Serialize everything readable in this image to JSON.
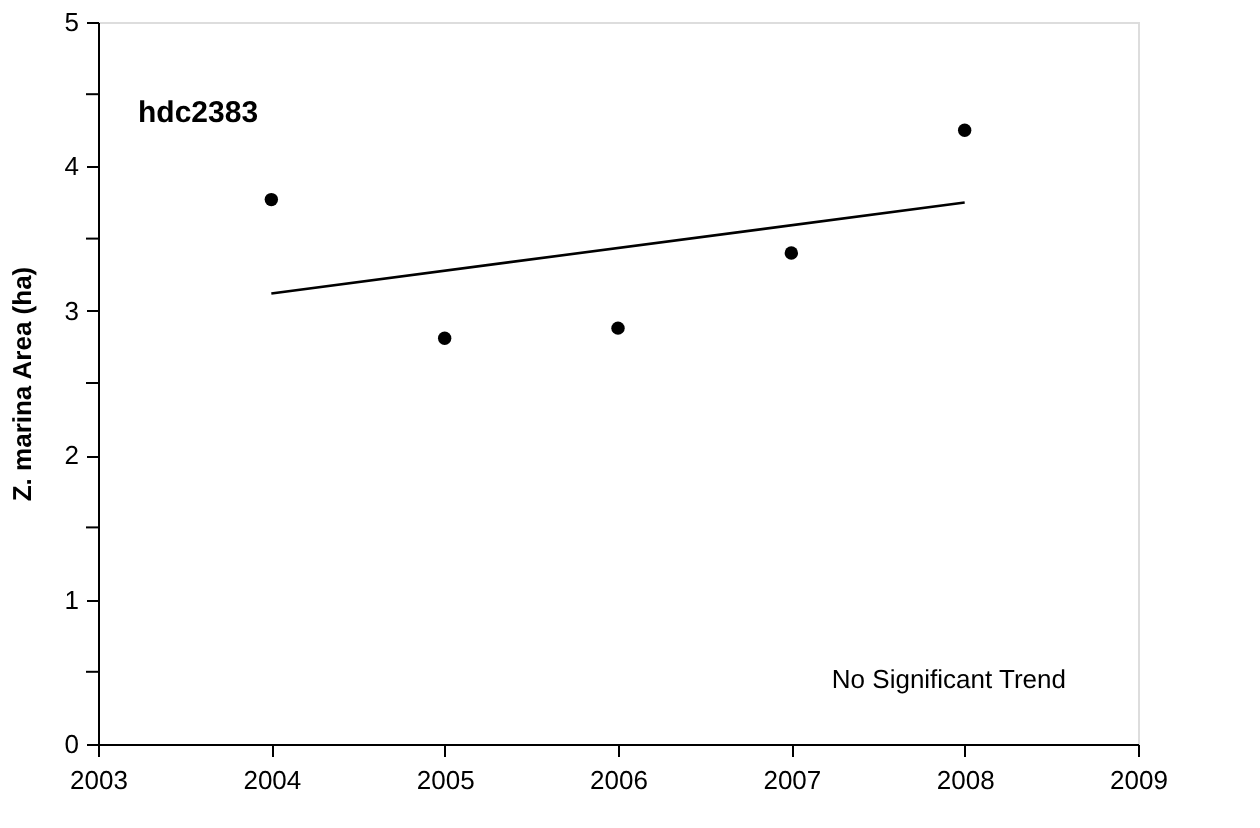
{
  "chart_data": {
    "type": "scatter",
    "title": "hdc2383",
    "ylabel": "Z. marina Area (ha)",
    "xlim": [
      2003,
      2009
    ],
    "xticks": [
      2003,
      2004,
      2005,
      2006,
      2007,
      2008,
      2009
    ],
    "ylim": [
      0,
      5
    ],
    "yticks": [
      0,
      {
        "value": 0.5,
        "label": null
      },
      1,
      {
        "value": 1.5,
        "label": null
      },
      2,
      {
        "value": 2.5,
        "label": null
      },
      3,
      {
        "value": 3.5,
        "label": null
      },
      4,
      {
        "value": 4.5,
        "label": null
      },
      5
    ],
    "grid": false,
    "legend": false,
    "series": [
      {
        "type": "scatter",
        "marker": "circle",
        "color": "#000000",
        "x": [
          2004,
          2005,
          2006,
          2007,
          2008
        ],
        "values": [
          3.77,
          2.81,
          2.88,
          3.4,
          4.25
        ]
      },
      {
        "type": "line",
        "color": "#000000",
        "x": [
          2004,
          2008
        ],
        "values": [
          3.12,
          3.75
        ],
        "line_style": "solid"
      }
    ],
    "annotations": [
      "No Significant Trend"
    ]
  }
}
